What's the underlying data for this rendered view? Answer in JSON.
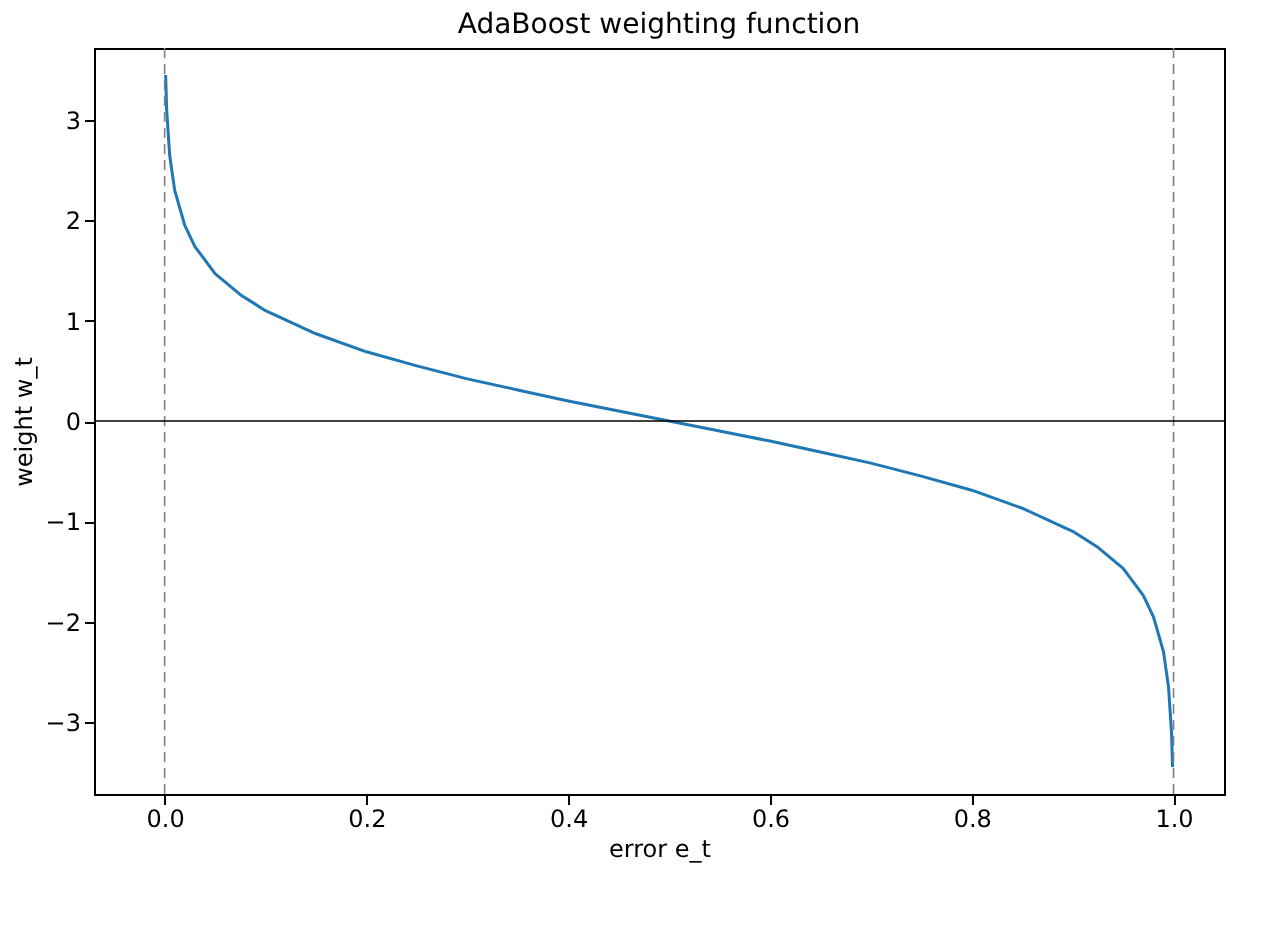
{
  "chart_data": {
    "type": "line",
    "title": "AdaBoost weighting function",
    "xlabel": "error e_t",
    "ylabel": "weight w_t",
    "x": [
      0.001,
      0.002,
      0.005,
      0.01,
      0.02,
      0.03,
      0.05,
      0.075,
      0.1,
      0.15,
      0.2,
      0.25,
      0.3,
      0.35,
      0.4,
      0.45,
      0.5,
      0.55,
      0.6,
      0.65,
      0.7,
      0.75,
      0.8,
      0.85,
      0.9,
      0.925,
      0.95,
      0.97,
      0.98,
      0.99,
      0.995,
      0.998,
      0.999
    ],
    "series": [
      {
        "color": "#1f77b4",
        "values": [
          3.45,
          3.11,
          2.65,
          2.3,
          1.95,
          1.74,
          1.47,
          1.26,
          1.1,
          0.87,
          0.69,
          0.55,
          0.42,
          0.31,
          0.2,
          0.1,
          0,
          -0.1,
          -0.2,
          -0.31,
          -0.42,
          -0.55,
          -0.69,
          -0.87,
          -1.1,
          -1.26,
          -1.47,
          -1.74,
          -1.95,
          -2.3,
          -2.65,
          -3.11,
          -3.45
        ]
      }
    ],
    "xlim": [
      -0.07,
      1.05
    ],
    "ylim": [
      -3.72,
      3.72
    ],
    "xticks": [
      {
        "value": 0,
        "label": "0.0"
      },
      0.2,
      0.4,
      0.6,
      0.8,
      {
        "value": 1,
        "label": "1.0"
      }
    ],
    "yticks": [
      -3,
      -2,
      -1,
      0,
      1,
      2,
      3
    ],
    "ref_lines": [
      {
        "axis": "x",
        "value": 0,
        "color": "#808080",
        "line_style": "dashed"
      },
      {
        "axis": "x",
        "value": 1,
        "color": "#808080",
        "line_style": "dashed"
      },
      {
        "axis": "y",
        "value": 0,
        "color": "#000000",
        "line_style": "solid"
      }
    ],
    "grid": false,
    "marker": "none",
    "line_style": "solid"
  }
}
